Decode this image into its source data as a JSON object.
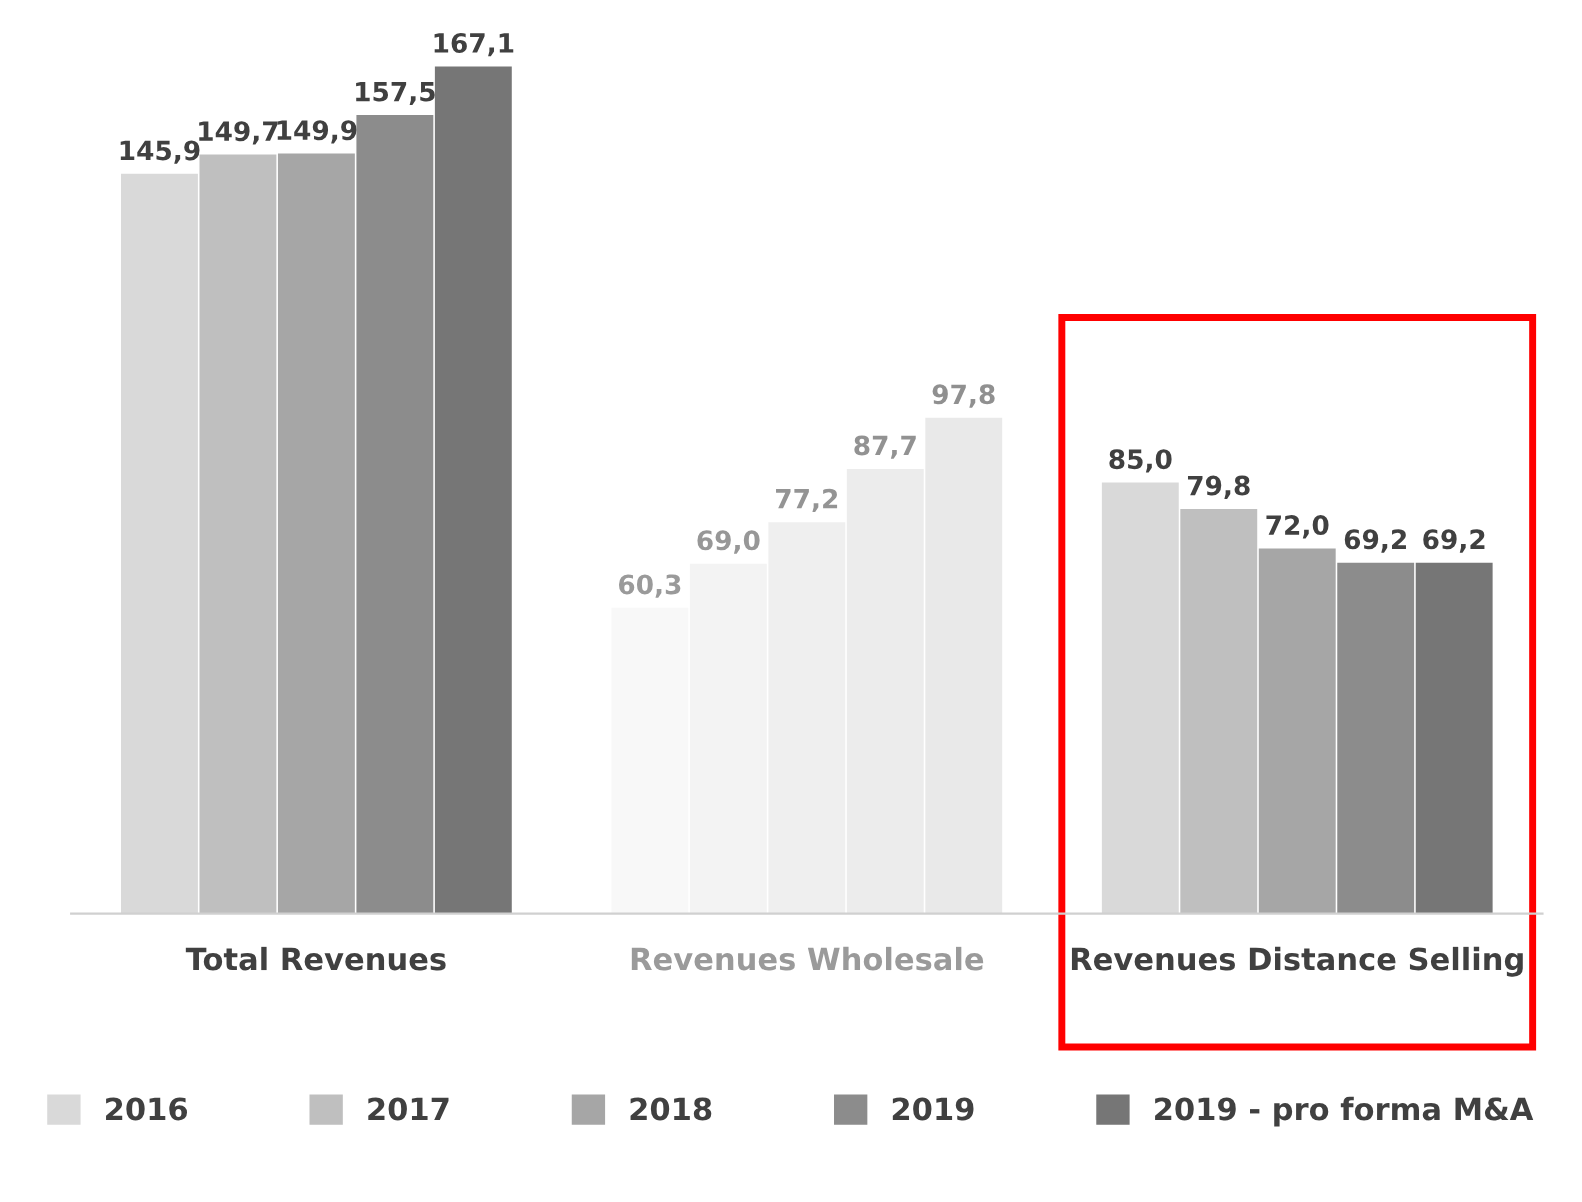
{
  "chart_data": {
    "type": "bar",
    "categories": [
      "Total Revenues",
      "Revenues Wholesale",
      "Revenues Distance Selling"
    ],
    "series": [
      {
        "name": "2016",
        "color": "#d9d9d9",
        "colors": [
          "#d9d9d9",
          "#f8f8f8",
          "#d9d9d9"
        ],
        "values": [
          145.9,
          60.3,
          85.0
        ],
        "value_labels": [
          "145,9",
          "60,3",
          "85,0"
        ]
      },
      {
        "name": "2017",
        "color": "#bfbfbf",
        "colors": [
          "#bfbfbf",
          "#f3f3f3",
          "#bfbfbf"
        ],
        "values": [
          149.7,
          69.0,
          79.8
        ],
        "value_labels": [
          "149,7",
          "69,0",
          "79,8"
        ]
      },
      {
        "name": "2018",
        "color": "#a6a6a6",
        "colors": [
          "#a6a6a6",
          "#efefef",
          "#a6a6a6"
        ],
        "values": [
          149.9,
          77.2,
          72.0
        ],
        "value_labels": [
          "149,9",
          "77,2",
          "72,0"
        ]
      },
      {
        "name": "2019",
        "color": "#8c8c8c",
        "colors": [
          "#8c8c8c",
          "#ececec",
          "#8c8c8c"
        ],
        "values": [
          157.5,
          87.7,
          69.2
        ],
        "value_labels": [
          "157,5",
          "87,7",
          "69,2"
        ]
      },
      {
        "name": "2019 - pro forma M&A",
        "color": "#767676",
        "colors": [
          "#767676",
          "#e9e9e9",
          "#767676"
        ],
        "values": [
          167.1,
          97.8,
          69.2
        ],
        "value_labels": [
          "167,1",
          "97,8",
          "69,2"
        ]
      }
    ],
    "legend": "bottom",
    "grid": false,
    "tick_labels": "x"
  }
}
